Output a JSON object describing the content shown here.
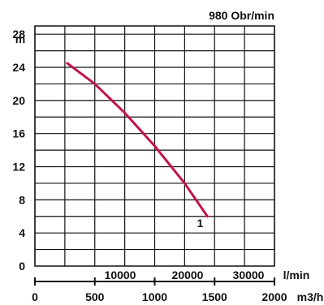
{
  "chart_data": {
    "type": "line",
    "title": "980 Obr/min",
    "ylabel": "m",
    "xlabel_primary": "l/min",
    "xlabel_secondary": "m3/h",
    "ylim": [
      0,
      29
    ],
    "xlim": [
      0,
      2000
    ],
    "primary_x_ticks": [
      0,
      500,
      1000,
      1500,
      2000
    ],
    "secondary_x_ticks": [
      10000,
      20000,
      30000
    ],
    "y_ticks": [
      0,
      4,
      8,
      12,
      16,
      20,
      24,
      28
    ],
    "grid": true,
    "series": [
      {
        "name": "1",
        "x": [
          270,
          500,
          750,
          1000,
          1250,
          1440
        ],
        "y": [
          24.5,
          22.0,
          18.5,
          14.5,
          10.0,
          6.0
        ]
      }
    ],
    "colors": {
      "curve": "#c0134f",
      "grid": "#111111",
      "text": "#111111"
    }
  }
}
